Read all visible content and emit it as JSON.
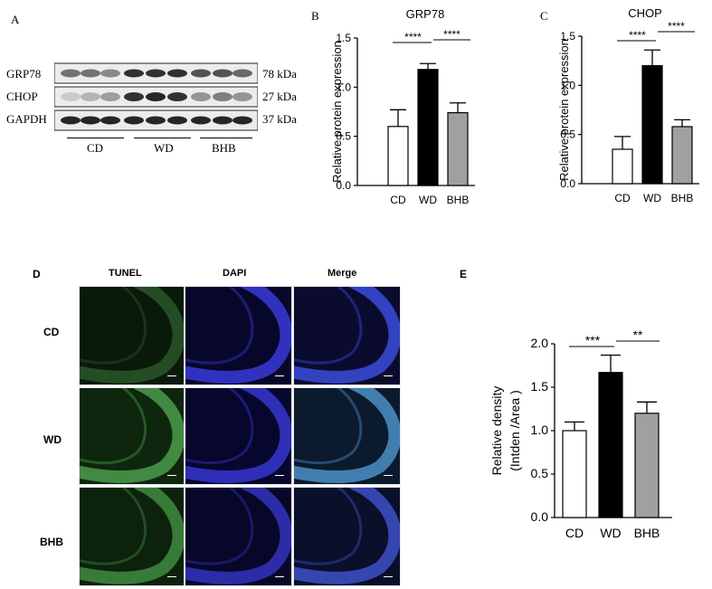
{
  "panels": {
    "a": "A",
    "b": "B",
    "c": "C",
    "d": "D",
    "e": "E"
  },
  "western_blot": {
    "proteins": [
      "GRP78",
      "CHOP",
      "GAPDH"
    ],
    "sizes": [
      "78 kDa",
      "27 kDa",
      "37 kDa"
    ],
    "groups": [
      "CD",
      "WD",
      "BHB"
    ]
  },
  "tunel": {
    "columns": [
      "TUNEL",
      "DAPI",
      "Merge"
    ],
    "rows": [
      "CD",
      "WD",
      "BHB"
    ]
  },
  "chart_data": [
    {
      "type": "bar",
      "title": "GRP78",
      "categories": [
        "CD",
        "WD",
        "BHB"
      ],
      "values": [
        0.6,
        1.18,
        0.74
      ],
      "errors": [
        0.17,
        0.06,
        0.1
      ],
      "bar_colors": [
        "#ffffff",
        "#000000",
        "#a0a0a0"
      ],
      "ylabel": "Relative protein expression",
      "ylim": [
        0,
        1.5
      ],
      "yticks": [
        "0.0",
        "0.5",
        "1.0",
        "1.5"
      ],
      "significance": [
        {
          "from": "CD",
          "to": "WD",
          "label": "****"
        },
        {
          "from": "WD",
          "to": "BHB",
          "label": "****"
        }
      ]
    },
    {
      "type": "bar",
      "title": "CHOP",
      "categories": [
        "CD",
        "WD",
        "BHB"
      ],
      "values": [
        0.35,
        1.2,
        0.58
      ],
      "errors": [
        0.13,
        0.16,
        0.07
      ],
      "bar_colors": [
        "#ffffff",
        "#000000",
        "#a0a0a0"
      ],
      "ylabel": "Relative protein expression",
      "ylim": [
        0,
        1.5
      ],
      "yticks": [
        "0.0",
        "0.5",
        "1.0",
        "1.5"
      ],
      "significance": [
        {
          "from": "CD",
          "to": "WD",
          "label": "****"
        },
        {
          "from": "WD",
          "to": "BHB",
          "label": "****"
        }
      ]
    },
    {
      "type": "bar",
      "title": "",
      "categories": [
        "CD",
        "WD",
        "BHB"
      ],
      "values": [
        1.0,
        1.67,
        1.2
      ],
      "errors": [
        0.1,
        0.2,
        0.13
      ],
      "bar_colors": [
        "#ffffff",
        "#000000",
        "#a0a0a0"
      ],
      "ylabel": "Relative density",
      "ylabel2": "(Intden /Area )",
      "ylim": [
        0,
        2.0
      ],
      "yticks": [
        "0.0",
        "0.5",
        "1.0",
        "1.5",
        "2.0"
      ],
      "significance": [
        {
          "from": "CD",
          "to": "WD",
          "label": "***"
        },
        {
          "from": "WD",
          "to": "BHB",
          "label": "**"
        }
      ]
    }
  ]
}
